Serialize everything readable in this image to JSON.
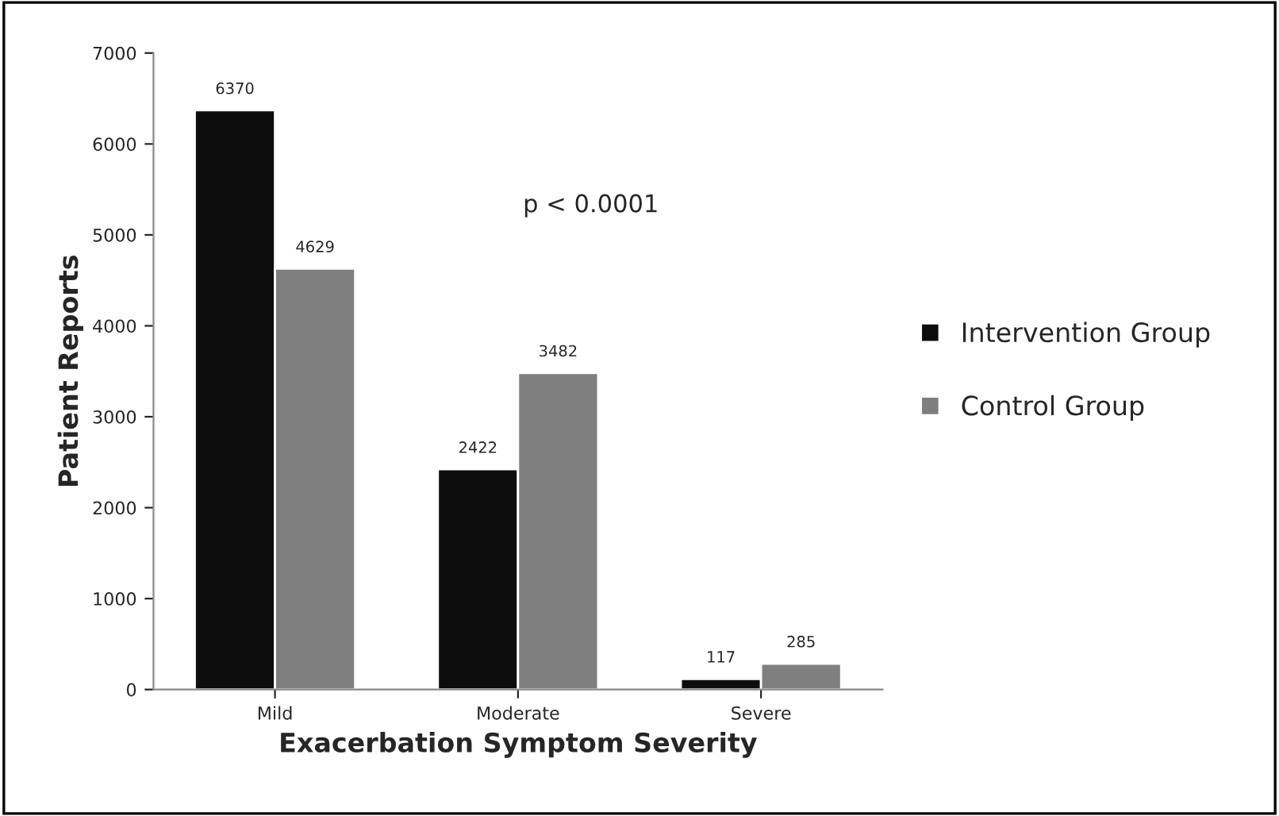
{
  "chart_data": {
    "type": "bar",
    "xlabel": "Exacerbation Symptom Severity",
    "ylabel": "Patient Reports",
    "categories": [
      "Mild",
      "Moderate",
      "Severe"
    ],
    "series": [
      {
        "name": "Intervention Group",
        "color": "#0d0d0d",
        "values": [
          6370,
          2422,
          117
        ]
      },
      {
        "name": "Control Group",
        "color": "#7f7f7f",
        "values": [
          4629,
          3482,
          285
        ]
      }
    ],
    "ylim": [
      0,
      7000
    ],
    "yticks": [
      0,
      1000,
      2000,
      3000,
      4000,
      5000,
      6000,
      7000
    ],
    "data_labels": true,
    "grid": false,
    "legend": "right",
    "annotations": [
      "p < 0.0001"
    ]
  }
}
